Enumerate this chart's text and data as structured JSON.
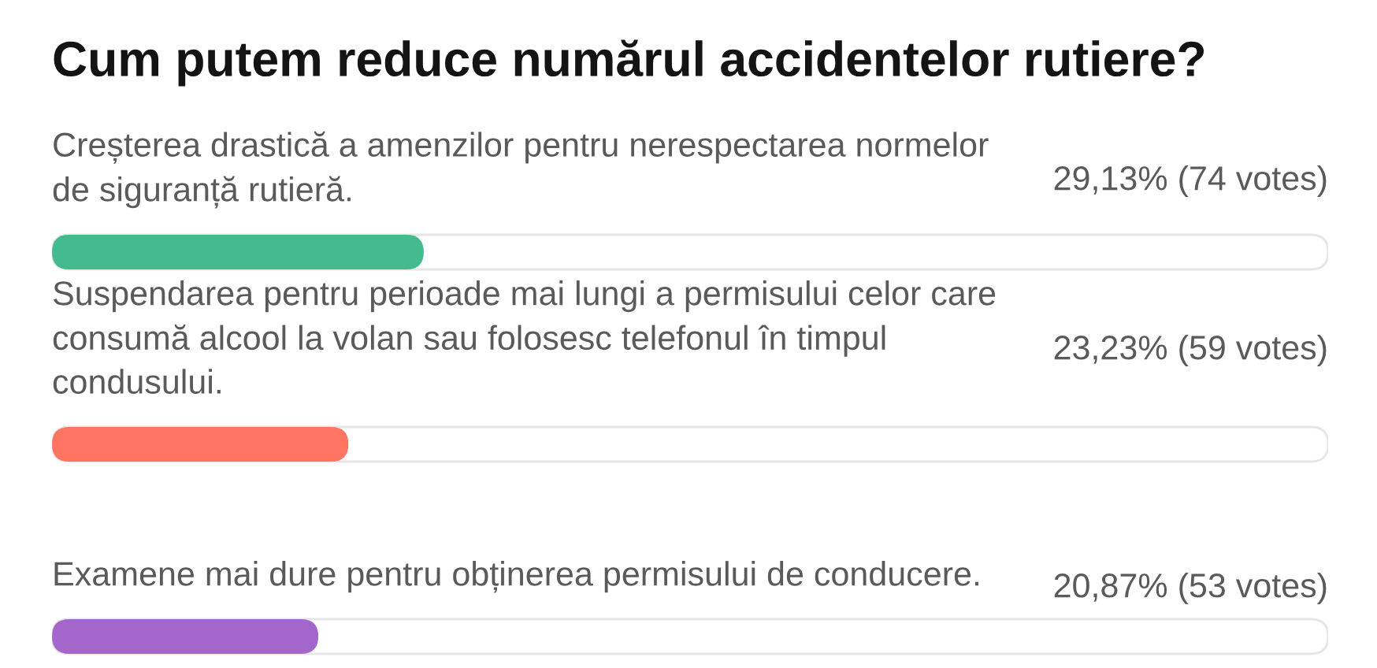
{
  "chart_data": {
    "type": "bar",
    "orientation": "horizontal",
    "title": "Cum putem reduce numărul accidentelor rutiere?",
    "categories": [
      "Creșterea drastică a amenzilor pentru nerespectarea normelor de siguranță rutieră.",
      "Suspendarea pentru perioade mai lungi a permisului celor care consumă alcool la volan sau folosesc telefonul în timpul condusului.",
      "Examene mai dure pentru obținerea permisului de conducere."
    ],
    "values": [
      29.13,
      23.23,
      20.87
    ],
    "value_labels": [
      "29,13% (74 votes)",
      "23,23% (59 votes)",
      "20,87% (53 votes)"
    ],
    "colors": [
      "#43bb8f",
      "#ff7562",
      "#a566cc"
    ],
    "xlim": [
      0,
      100
    ],
    "tick_labels": false
  }
}
